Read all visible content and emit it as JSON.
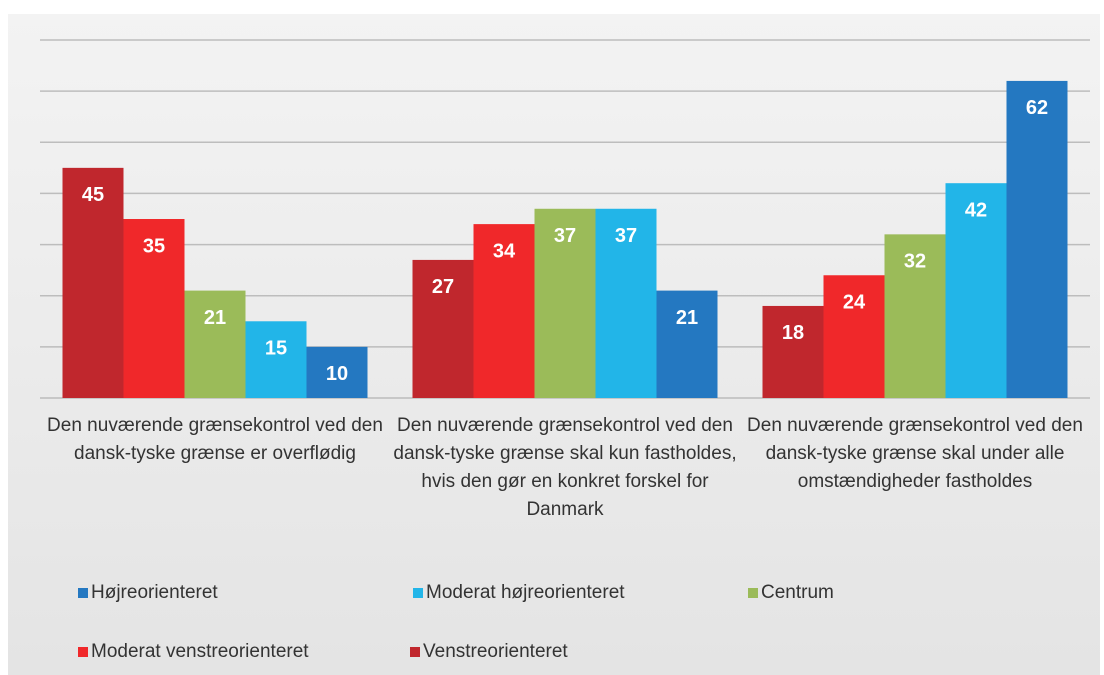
{
  "chart_data": {
    "type": "bar",
    "categories": [
      "Den nuværende grænsekontrol ved den dansk-tyske grænse er overflødig",
      "Den nuværende grænsekontrol ved den dansk-tyske grænse skal kun fastholdes, hvis den gør en konkret forskel for Danmark",
      "Den nuværende grænsekontrol ved den dansk-tyske grænse skal under alle omstændigheder fastholdes"
    ],
    "series": [
      {
        "name": "Venstreorienteret",
        "color": "#c0272d",
        "values": [
          45,
          27,
          18
        ]
      },
      {
        "name": "Moderat venstreorienteret",
        "color": "#f0282a",
        "values": [
          35,
          34,
          24
        ]
      },
      {
        "name": "Centrum",
        "color": "#9bbb59",
        "values": [
          21,
          37,
          32
        ]
      },
      {
        "name": "Moderat højreorienteret",
        "color": "#22b5e8",
        "values": [
          15,
          37,
          42
        ]
      },
      {
        "name": "Højreorienteret",
        "color": "#2478c1",
        "values": [
          10,
          21,
          62
        ]
      }
    ],
    "ylim": [
      0,
      70
    ],
    "yticks": [
      0,
      10,
      20,
      30,
      40,
      50,
      60,
      70
    ],
    "grid": true
  }
}
